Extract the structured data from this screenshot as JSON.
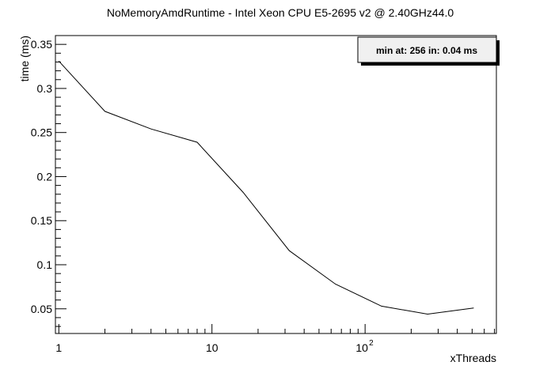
{
  "chart_data": {
    "type": "line",
    "title": "NoMemoryAmdRuntime - Intel Xeon CPU E5-2695 v2 @ 2.40GHz44.0",
    "xlabel": "xThreads",
    "ylabel": "time (ms)",
    "xscale": "log",
    "xlim": [
      0.95,
      720
    ],
    "ylim": [
      0.022,
      0.36
    ],
    "x_ticks": [
      {
        "value": 1,
        "label": "1"
      },
      {
        "value": 10,
        "label": "10"
      },
      {
        "value": 100,
        "label": "10",
        "exp": "2"
      }
    ],
    "y_ticks": [
      0.05,
      0.1,
      0.15,
      0.2,
      0.25,
      0.3,
      0.35
    ],
    "y_tick_labels": [
      "0.05",
      "0.1",
      "0.15",
      "0.2",
      "0.25",
      "0.3",
      "0.35"
    ],
    "grid": false,
    "legend": "none",
    "line_color": "#000000",
    "series": [
      {
        "x": [
          1,
          2,
          4,
          8,
          16,
          32,
          64,
          128,
          256,
          512
        ],
        "values": [
          0.331,
          0.274,
          0.254,
          0.239,
          0.182,
          0.116,
          0.078,
          0.053,
          0.044,
          0.051
        ]
      }
    ],
    "annotation": "min at: 256 in: 0.04 ms"
  }
}
